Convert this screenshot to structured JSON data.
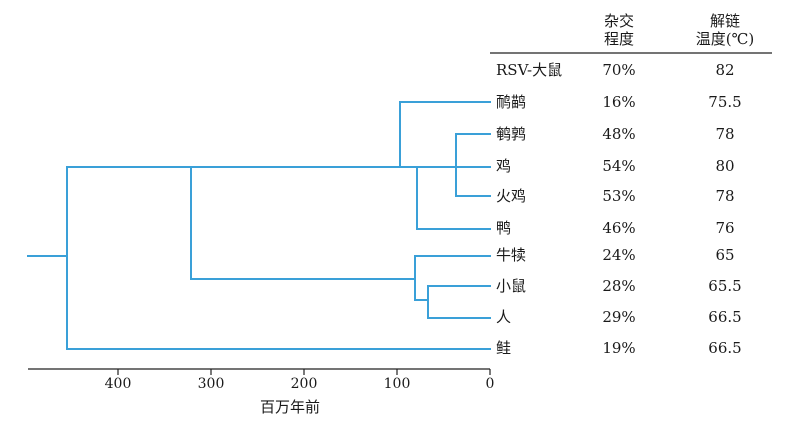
{
  "header": {
    "hybridization_line1": "杂交",
    "hybridization_line2": "程度",
    "melting_line1": "解链",
    "melting_line2": "温度(℃)"
  },
  "rows": [
    {
      "name": "RSV-大鼠",
      "hybridization": "70%",
      "melting": "82"
    },
    {
      "name": "鸸鹋",
      "hybridization": "16%",
      "melting": "75.5"
    },
    {
      "name": "鹌鹑",
      "hybridization": "48%",
      "melting": "78"
    },
    {
      "name": "鸡",
      "hybridization": "54%",
      "melting": "80"
    },
    {
      "name": "火鸡",
      "hybridization": "53%",
      "melting": "78"
    },
    {
      "name": "鸭",
      "hybridization": "46%",
      "melting": "76"
    },
    {
      "name": "牛犊",
      "hybridization": "24%",
      "melting": "65"
    },
    {
      "name": "小鼠",
      "hybridization": "28%",
      "melting": "65.5"
    },
    {
      "name": "人",
      "hybridization": "29%",
      "melting": "66.5"
    },
    {
      "name": "鲑",
      "hybridization": "19%",
      "melting": "66.5"
    }
  ],
  "axis": {
    "title": "百万年前",
    "ticks": [
      "400",
      "300",
      "200",
      "100",
      "0"
    ]
  },
  "colors": {
    "tree": "#3aa0d8",
    "text": "#1a1a1a",
    "rule": "#222222"
  }
}
